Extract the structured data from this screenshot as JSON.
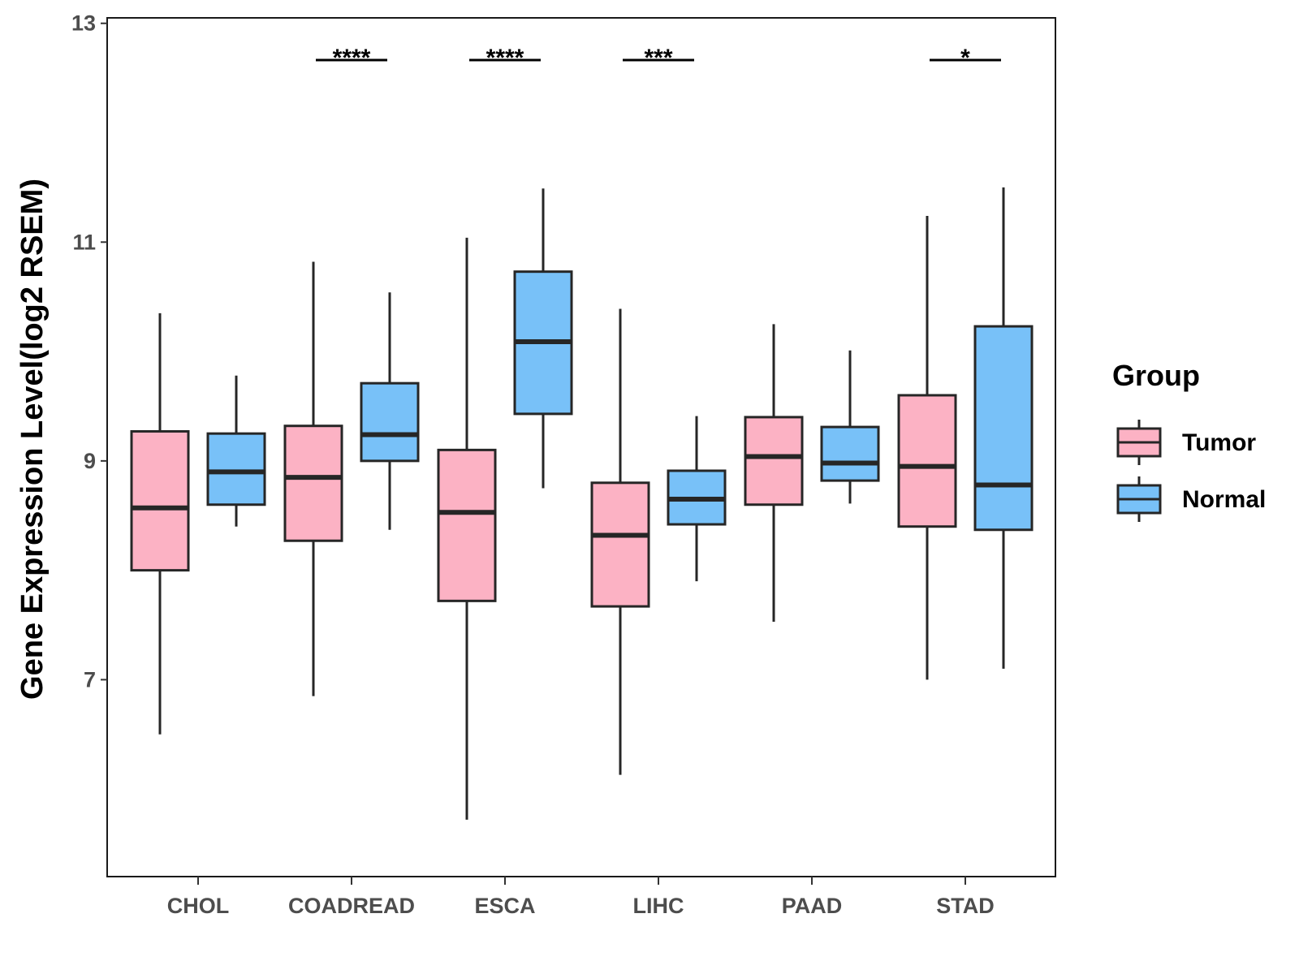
{
  "chart_data": {
    "type": "boxplot",
    "ylabel": "Gene Expression Level(log2 RSEM)",
    "xlabel": "",
    "ylim": [
      5.2,
      13.05
    ],
    "yticks": [
      7,
      9,
      11,
      13
    ],
    "categories": [
      "CHOL",
      "COADREAD",
      "ESCA",
      "LIHC",
      "PAAD",
      "STAD"
    ],
    "legend": {
      "title": "Group",
      "position": "right"
    },
    "grid": false,
    "series": [
      {
        "name": "Tumor",
        "color": "#fcb2c4",
        "boxes": [
          {
            "min": 6.5,
            "q1": 8.0,
            "median": 8.57,
            "q3": 9.27,
            "max": 10.35
          },
          {
            "min": 6.85,
            "q1": 8.27,
            "median": 8.85,
            "q3": 9.32,
            "max": 10.82
          },
          {
            "min": 5.72,
            "q1": 7.72,
            "median": 8.53,
            "q3": 9.1,
            "max": 11.04
          },
          {
            "min": 6.13,
            "q1": 7.67,
            "median": 8.32,
            "q3": 8.8,
            "max": 10.39
          },
          {
            "min": 7.53,
            "q1": 8.6,
            "median": 9.04,
            "q3": 9.4,
            "max": 10.25
          },
          {
            "min": 7.0,
            "q1": 8.4,
            "median": 8.95,
            "q3": 9.6,
            "max": 11.24
          }
        ]
      },
      {
        "name": "Normal",
        "color": "#78c1f8",
        "boxes": [
          {
            "min": 8.4,
            "q1": 8.6,
            "median": 8.9,
            "q3": 9.25,
            "max": 9.78
          },
          {
            "min": 8.37,
            "q1": 9.0,
            "median": 9.24,
            "q3": 9.71,
            "max": 10.54
          },
          {
            "min": 8.75,
            "q1": 9.43,
            "median": 10.09,
            "q3": 10.73,
            "max": 11.49
          },
          {
            "min": 7.9,
            "q1": 8.42,
            "median": 8.65,
            "q3": 8.91,
            "max": 9.41
          },
          {
            "min": 8.61,
            "q1": 8.82,
            "median": 8.98,
            "q3": 9.31,
            "max": 10.01
          },
          {
            "min": 7.1,
            "q1": 8.37,
            "median": 8.78,
            "q3": 10.23,
            "max": 11.5
          }
        ]
      }
    ],
    "significance": [
      {
        "category": "COADREAD",
        "label": "****"
      },
      {
        "category": "ESCA",
        "label": "****"
      },
      {
        "category": "LIHC",
        "label": "***"
      },
      {
        "category": "STAD",
        "label": "*"
      }
    ]
  }
}
